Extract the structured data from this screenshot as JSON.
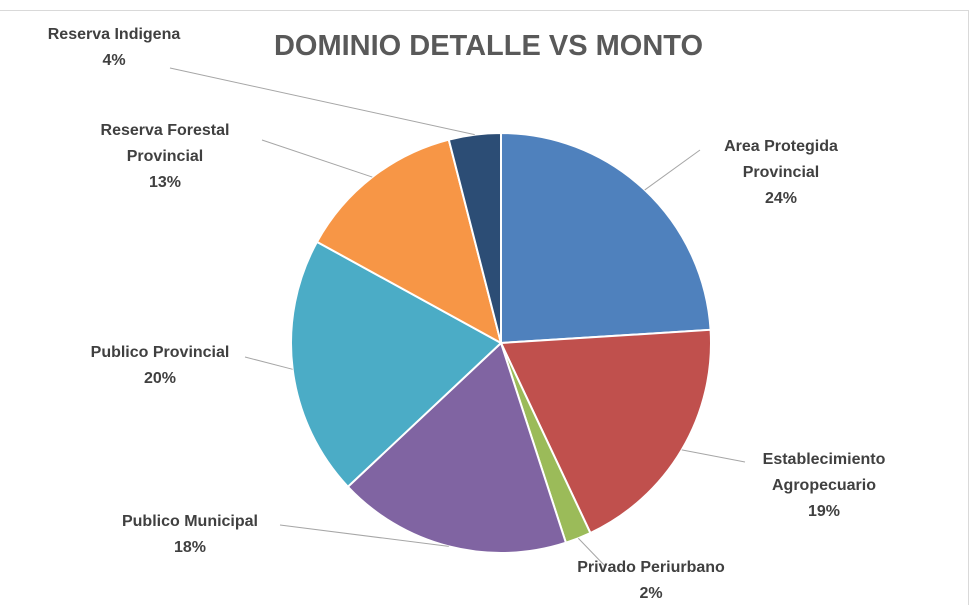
{
  "chart_data": {
    "type": "pie",
    "title": "DOMINIO DETALLE VS MONTO",
    "categories": [
      "Area Protegida Provincial",
      "Establecimiento Agropecuario",
      "Privado Periurbano",
      "Publico Municipal",
      "Publico Provincial",
      "Reserva Forestal Provincial",
      "Reserva Indigena"
    ],
    "values": [
      24,
      19,
      2,
      18,
      20,
      13,
      4
    ],
    "value_labels": [
      "24%",
      "19%",
      "2%",
      "18%",
      "20%",
      "13%",
      "4%"
    ],
    "colors": [
      "#4f81bd",
      "#c0504d",
      "#9bbb59",
      "#8064a2",
      "#4bacc6",
      "#f79646",
      "#2c4d75"
    ]
  }
}
